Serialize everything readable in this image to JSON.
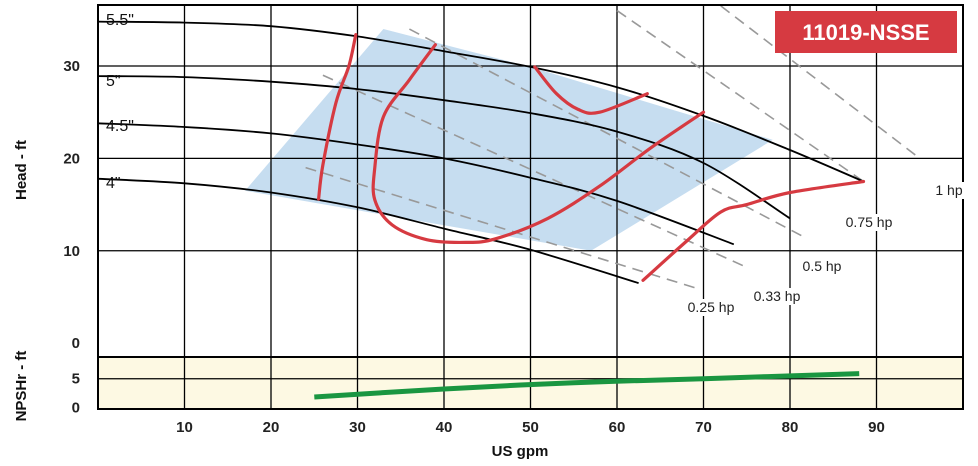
{
  "chart_data": {
    "type": "line",
    "model": "11019-NSSE",
    "colors": {
      "efficiency_region": "#c6ddf0",
      "npsh_band": "#fdf9e3",
      "impeller": "#000000",
      "efficiency_island": "#d63a41",
      "power": "#999999",
      "npsh": "#1a9641",
      "badge": "#d63a41"
    },
    "head": {
      "ylabel": "Head - ft",
      "yticks": [
        0,
        10,
        20,
        30
      ],
      "ylim": [
        -1.5,
        36.6
      ]
    },
    "npsh": {
      "ylabel": "NPSHr - ft",
      "yticks": [
        0,
        5
      ],
      "ylim": [
        -0.3,
        8.8
      ],
      "values": [
        [
          25,
          1.8
        ],
        [
          40,
          3.2
        ],
        [
          55,
          4.3
        ],
        [
          70,
          5
        ],
        [
          88,
          5.9
        ]
      ]
    },
    "x": {
      "xlabel": "US gpm",
      "xticks": [
        10,
        20,
        30,
        40,
        50,
        60,
        70,
        80,
        90
      ],
      "xlim": [
        0,
        100
      ]
    },
    "impeller_curves": [
      {
        "name": "5.5\"",
        "points": [
          [
            0,
            34.8
          ],
          [
            10,
            34.7
          ],
          [
            20,
            34.3
          ],
          [
            30,
            33.2
          ],
          [
            40,
            31.6
          ],
          [
            50,
            29.9
          ],
          [
            60,
            27.7
          ],
          [
            70,
            24.6
          ],
          [
            80,
            20.9
          ],
          [
            88.5,
            17.5
          ]
        ]
      },
      {
        "name": "5\"",
        "points": [
          [
            0,
            28.9
          ],
          [
            10,
            28.8
          ],
          [
            20,
            28.3
          ],
          [
            30,
            27.5
          ],
          [
            40,
            26.3
          ],
          [
            50,
            24.9
          ],
          [
            60,
            22.9
          ],
          [
            70,
            19.5
          ],
          [
            80,
            13.5
          ]
        ]
      },
      {
        "name": "4.5\"",
        "points": [
          [
            0,
            23.8
          ],
          [
            10,
            23.4
          ],
          [
            20,
            22.7
          ],
          [
            30,
            21.5
          ],
          [
            40,
            20.0
          ],
          [
            50,
            17.9
          ],
          [
            60,
            15.4
          ],
          [
            73.5,
            10.7
          ]
        ]
      },
      {
        "name": "4\"",
        "points": [
          [
            0,
            17.8
          ],
          [
            10,
            17.3
          ],
          [
            20,
            16.3
          ],
          [
            30,
            14.7
          ],
          [
            40,
            12.4
          ],
          [
            50,
            10.1
          ],
          [
            62.5,
            6.5
          ]
        ]
      }
    ],
    "efficiency_region": [
      [
        17,
        16.5
      ],
      [
        33,
        34.0
      ],
      [
        50,
        29.9
      ],
      [
        62,
        26.5
      ],
      [
        78,
        22.0
      ],
      [
        57,
        10.0
      ]
    ],
    "efficiency_islands": [
      {
        "points": [
          [
            25.5,
            15.6
          ],
          [
            26,
            19.3
          ],
          [
            27.5,
            26.0
          ],
          [
            29,
            30.0
          ],
          [
            29.8,
            33.4
          ]
        ]
      },
      {
        "points": [
          [
            39,
            32.3
          ],
          [
            36,
            28.5
          ],
          [
            33,
            24.5
          ],
          [
            32,
            19.0
          ],
          [
            32,
            15.5
          ],
          [
            34,
            12.8
          ],
          [
            38,
            11.2
          ],
          [
            42.5,
            10.9
          ],
          [
            46,
            11.3
          ],
          [
            52,
            13.5
          ],
          [
            58,
            17.0
          ],
          [
            64,
            21.2
          ],
          [
            70,
            25.0
          ]
        ]
      },
      {
        "points": [
          [
            50.5,
            29.9
          ],
          [
            53,
            27.0
          ],
          [
            55.5,
            25.3
          ],
          [
            58,
            25.0
          ],
          [
            63.5,
            27.0
          ]
        ]
      },
      {
        "points": [
          [
            63,
            6.8
          ],
          [
            68,
            11.0
          ],
          [
            72,
            14.2
          ],
          [
            75,
            15.0
          ],
          [
            80,
            16.3
          ],
          [
            88.5,
            17.5
          ]
        ]
      }
    ],
    "power_lines": [
      {
        "name": "0.25 hp",
        "points": [
          [
            24,
            19.0
          ],
          [
            69,
            6.0
          ]
        ]
      },
      {
        "name": "0.33 hp",
        "points": [
          [
            26,
            29.0
          ],
          [
            75,
            8.2
          ]
        ]
      },
      {
        "name": "0.5 hp",
        "points": [
          [
            36,
            34.0
          ],
          [
            82,
            11.3
          ]
        ]
      },
      {
        "name": "0.75 hp",
        "points": [
          [
            60,
            36.0
          ],
          [
            88.5,
            17.5
          ]
        ]
      },
      {
        "name": "1 hp",
        "points": [
          [
            72,
            36.5
          ],
          [
            95,
            20.0
          ]
        ]
      }
    ]
  }
}
